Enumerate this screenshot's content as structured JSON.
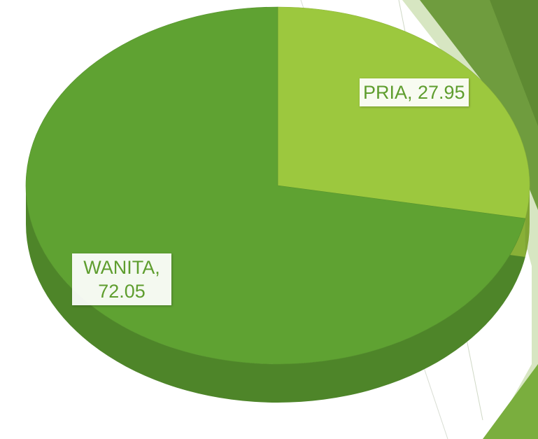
{
  "chart_data": {
    "type": "pie",
    "categories": [
      "PRIA",
      "WANITA"
    ],
    "values": [
      27.95,
      72.05
    ],
    "value_labels": [
      "PRIA, 27.95",
      "WANITA, 72.05"
    ],
    "colors": [
      "#9cc83e",
      "#5fa232"
    ]
  }
}
